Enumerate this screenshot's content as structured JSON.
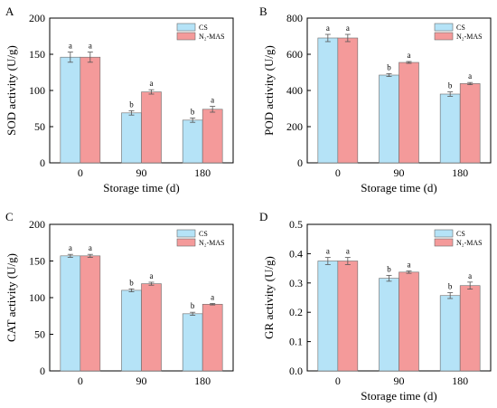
{
  "legend_labels": [
    "CS",
    "N₂-MAS"
  ],
  "colors": {
    "cs": "#b5e3f7",
    "n2mas": "#f49a9a",
    "axis": "#000000",
    "error": "#555555"
  },
  "chart_data": [
    {
      "panel": "A",
      "type": "bar",
      "xlabel": "Storage time (d)",
      "ylabel": "SOD activity (U/g)",
      "categories": [
        "0",
        "90",
        "180"
      ],
      "ylim": [
        0,
        200
      ],
      "yticks": [
        "0",
        "50",
        "100",
        "150",
        "200"
      ],
      "legend_position": "top-right",
      "series": [
        {
          "name": "CS",
          "values": [
            146,
            69,
            59
          ],
          "errors": [
            7,
            3,
            3
          ],
          "letters": [
            "a",
            "b",
            "b"
          ]
        },
        {
          "name": "N₂-MAS",
          "values": [
            146,
            98,
            74
          ],
          "errors": [
            7,
            3,
            4
          ],
          "letters": [
            "a",
            "a",
            "a"
          ]
        }
      ]
    },
    {
      "panel": "B",
      "type": "bar",
      "xlabel": "Storage time (d)",
      "ylabel": "POD activity (U/g)",
      "categories": [
        "0",
        "90",
        "180"
      ],
      "ylim": [
        0,
        800
      ],
      "yticks": [
        "0",
        "200",
        "400",
        "600",
        "800"
      ],
      "legend_position": "top-right",
      "series": [
        {
          "name": "CS",
          "values": [
            690,
            485,
            380
          ],
          "errors": [
            20,
            8,
            12
          ],
          "letters": [
            "a",
            "b",
            "b"
          ]
        },
        {
          "name": "N₂-MAS",
          "values": [
            690,
            555,
            438
          ],
          "errors": [
            20,
            5,
            6
          ],
          "letters": [
            "a",
            "a",
            "a"
          ]
        }
      ]
    },
    {
      "panel": "C",
      "type": "bar",
      "xlabel": "",
      "ylabel": "CAT activity (U/g)",
      "categories": [
        "0",
        "90",
        "180"
      ],
      "ylim": [
        0,
        200
      ],
      "yticks": [
        "0",
        "50",
        "100",
        "150",
        "200"
      ],
      "legend_position": "top-right",
      "series": [
        {
          "name": "CS",
          "values": [
            157,
            110,
            78
          ],
          "errors": [
            2,
            2,
            2
          ],
          "letters": [
            "a",
            "b",
            "b"
          ]
        },
        {
          "name": "N₂-MAS",
          "values": [
            157,
            119,
            91
          ],
          "errors": [
            2,
            2,
            1
          ],
          "letters": [
            "a",
            "a",
            "a"
          ]
        }
      ]
    },
    {
      "panel": "D",
      "type": "bar",
      "xlabel": "Storage time (d)",
      "ylabel": "GR activity (U/g)",
      "categories": [
        "0",
        "90",
        "180"
      ],
      "ylim": [
        0,
        0.5
      ],
      "yticks": [
        "0.0",
        "0.1",
        "0.2",
        "0.3",
        "0.4",
        "0.5"
      ],
      "legend_position": "top-right",
      "series": [
        {
          "name": "CS",
          "values": [
            0.375,
            0.316,
            0.257
          ],
          "errors": [
            0.012,
            0.01,
            0.01
          ],
          "letters": [
            "a",
            "b",
            "b"
          ]
        },
        {
          "name": "N₂-MAS",
          "values": [
            0.375,
            0.337,
            0.291
          ],
          "errors": [
            0.012,
            0.004,
            0.012
          ],
          "letters": [
            "a",
            "a",
            "a"
          ]
        }
      ]
    }
  ]
}
